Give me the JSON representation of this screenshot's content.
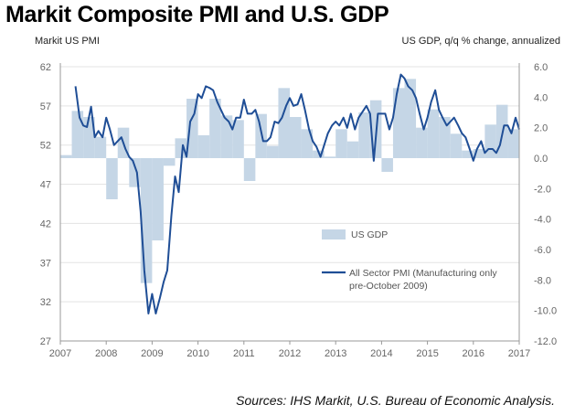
{
  "chart_data": {
    "type": "bar+line",
    "title": "Markit Composite PMI and U.S. GDP",
    "ylabel_left": "Markit US  PMI",
    "ylabel_right": "US GDP, q/q % change, annualized",
    "xlim": [
      2007.0,
      2017.0
    ],
    "ylim_left": [
      27,
      62
    ],
    "ylim_right": [
      -12.0,
      6.0
    ],
    "x_ticks": [
      "2007",
      "2008",
      "2009",
      "2010",
      "2011",
      "2012",
      "2013",
      "2014",
      "2015",
      "2016",
      "2017"
    ],
    "y_ticks_left": [
      "62",
      "57",
      "52",
      "47",
      "42",
      "37",
      "32",
      "27"
    ],
    "y_ticks_right": [
      "6.0",
      "4.0",
      "2.0",
      "0.0",
      "-2.0",
      "-4.0",
      "-6.0",
      "-8.0",
      "-10.0",
      "-12.0"
    ],
    "grid": true,
    "gdp_series": {
      "name": "US GDP",
      "color": "#c5d6e6",
      "quarters": [
        {
          "start": 2007.0,
          "value": 0.2
        },
        {
          "start": 2007.25,
          "value": 3.1
        },
        {
          "start": 2007.5,
          "value": 2.7
        },
        {
          "start": 2007.75,
          "value": 1.4
        },
        {
          "start": 2008.0,
          "value": -2.7
        },
        {
          "start": 2008.25,
          "value": 2.0
        },
        {
          "start": 2008.5,
          "value": -1.9
        },
        {
          "start": 2008.75,
          "value": -8.2
        },
        {
          "start": 2009.0,
          "value": -5.4
        },
        {
          "start": 2009.25,
          "value": -0.5
        },
        {
          "start": 2009.5,
          "value": 1.3
        },
        {
          "start": 2009.75,
          "value": 3.9
        },
        {
          "start": 2010.0,
          "value": 1.5
        },
        {
          "start": 2010.25,
          "value": 3.9
        },
        {
          "start": 2010.5,
          "value": 2.8
        },
        {
          "start": 2010.75,
          "value": 2.5
        },
        {
          "start": 2011.0,
          "value": -1.5
        },
        {
          "start": 2011.25,
          "value": 2.9
        },
        {
          "start": 2011.5,
          "value": 0.8
        },
        {
          "start": 2011.75,
          "value": 4.6
        },
        {
          "start": 2012.0,
          "value": 2.7
        },
        {
          "start": 2012.25,
          "value": 1.9
        },
        {
          "start": 2012.5,
          "value": 0.5
        },
        {
          "start": 2012.75,
          "value": 0.1
        },
        {
          "start": 2013.0,
          "value": 1.9
        },
        {
          "start": 2013.25,
          "value": 1.1
        },
        {
          "start": 2013.5,
          "value": 3.0
        },
        {
          "start": 2013.75,
          "value": 3.8
        },
        {
          "start": 2014.0,
          "value": -0.9
        },
        {
          "start": 2014.25,
          "value": 4.6
        },
        {
          "start": 2014.5,
          "value": 5.2
        },
        {
          "start": 2014.75,
          "value": 2.0
        },
        {
          "start": 2015.0,
          "value": 3.2
        },
        {
          "start": 2015.25,
          "value": 2.7
        },
        {
          "start": 2015.5,
          "value": 1.6
        },
        {
          "start": 2015.75,
          "value": 0.5
        },
        {
          "start": 2016.0,
          "value": 0.6
        },
        {
          "start": 2016.25,
          "value": 2.2
        },
        {
          "start": 2016.5,
          "value": 3.5
        },
        {
          "start": 2016.75,
          "value": 1.9
        }
      ]
    },
    "pmi_series": {
      "name": "All Sector PMI (Manufacturing only pre-October 2009)",
      "color": "#1f4e96",
      "points": [
        [
          2007.33,
          59.5
        ],
        [
          2007.42,
          55.5
        ],
        [
          2007.5,
          54.5
        ],
        [
          2007.58,
          54.3
        ],
        [
          2007.67,
          56.9
        ],
        [
          2007.75,
          53.0
        ],
        [
          2007.83,
          53.8
        ],
        [
          2007.92,
          53.0
        ],
        [
          2008.0,
          55.5
        ],
        [
          2008.08,
          54.0
        ],
        [
          2008.17,
          52.0
        ],
        [
          2008.25,
          52.5
        ],
        [
          2008.33,
          53.0
        ],
        [
          2008.42,
          51.5
        ],
        [
          2008.5,
          50.5
        ],
        [
          2008.58,
          50.0
        ],
        [
          2008.67,
          48.5
        ],
        [
          2008.75,
          43.5
        ],
        [
          2008.83,
          36.0
        ],
        [
          2008.92,
          30.5
        ],
        [
          2009.0,
          33.0
        ],
        [
          2009.08,
          30.5
        ],
        [
          2009.17,
          32.5
        ],
        [
          2009.25,
          34.5
        ],
        [
          2009.33,
          36.0
        ],
        [
          2009.42,
          43.0
        ],
        [
          2009.5,
          48.0
        ],
        [
          2009.58,
          46.0
        ],
        [
          2009.67,
          52.0
        ],
        [
          2009.75,
          50.5
        ],
        [
          2009.83,
          55.0
        ],
        [
          2009.92,
          56.0
        ],
        [
          2010.0,
          58.5
        ],
        [
          2010.08,
          58.0
        ],
        [
          2010.17,
          59.5
        ],
        [
          2010.25,
          59.3
        ],
        [
          2010.33,
          59.0
        ],
        [
          2010.42,
          57.5
        ],
        [
          2010.5,
          56.5
        ],
        [
          2010.58,
          55.5
        ],
        [
          2010.67,
          55.0
        ],
        [
          2010.75,
          54.0
        ],
        [
          2010.83,
          55.5
        ],
        [
          2010.92,
          55.5
        ],
        [
          2011.0,
          57.8
        ],
        [
          2011.08,
          56.0
        ],
        [
          2011.17,
          56.0
        ],
        [
          2011.25,
          56.5
        ],
        [
          2011.33,
          55.0
        ],
        [
          2011.42,
          52.5
        ],
        [
          2011.5,
          52.5
        ],
        [
          2011.58,
          53.0
        ],
        [
          2011.67,
          55.0
        ],
        [
          2011.75,
          54.8
        ],
        [
          2011.83,
          55.5
        ],
        [
          2011.92,
          57.0
        ],
        [
          2012.0,
          58.0
        ],
        [
          2012.08,
          57.0
        ],
        [
          2012.17,
          57.2
        ],
        [
          2012.25,
          58.5
        ],
        [
          2012.33,
          56.5
        ],
        [
          2012.42,
          54.0
        ],
        [
          2012.5,
          52.5
        ],
        [
          2012.58,
          51.8
        ],
        [
          2012.67,
          50.5
        ],
        [
          2012.75,
          52.0
        ],
        [
          2012.83,
          53.5
        ],
        [
          2012.92,
          54.5
        ],
        [
          2013.0,
          55.0
        ],
        [
          2013.08,
          54.5
        ],
        [
          2013.17,
          55.5
        ],
        [
          2013.25,
          54.2
        ],
        [
          2013.33,
          56.0
        ],
        [
          2013.42,
          54.0
        ],
        [
          2013.5,
          55.5
        ],
        [
          2013.58,
          56.2
        ],
        [
          2013.67,
          57.0
        ],
        [
          2013.75,
          56.0
        ],
        [
          2013.83,
          50.0
        ],
        [
          2013.92,
          56.0
        ],
        [
          2014.0,
          56.0
        ],
        [
          2014.08,
          56.0
        ],
        [
          2014.17,
          54.0
        ],
        [
          2014.25,
          55.5
        ],
        [
          2014.33,
          58.5
        ],
        [
          2014.42,
          61.0
        ],
        [
          2014.5,
          60.5
        ],
        [
          2014.58,
          59.5
        ],
        [
          2014.67,
          59.0
        ],
        [
          2014.75,
          58.0
        ],
        [
          2014.83,
          56.0
        ],
        [
          2014.92,
          54.0
        ],
        [
          2015.0,
          55.5
        ],
        [
          2015.08,
          57.5
        ],
        [
          2015.17,
          59.0
        ],
        [
          2015.25,
          56.5
        ],
        [
          2015.33,
          55.5
        ],
        [
          2015.42,
          54.5
        ],
        [
          2015.5,
          55.0
        ],
        [
          2015.58,
          55.5
        ],
        [
          2015.67,
          54.5
        ],
        [
          2015.75,
          53.5
        ],
        [
          2015.83,
          53.0
        ],
        [
          2015.92,
          51.5
        ],
        [
          2016.0,
          50.0
        ],
        [
          2016.08,
          51.5
        ],
        [
          2016.17,
          52.5
        ],
        [
          2016.25,
          51.0
        ],
        [
          2016.33,
          51.5
        ],
        [
          2016.42,
          51.5
        ],
        [
          2016.5,
          51.0
        ],
        [
          2016.58,
          52.0
        ],
        [
          2016.67,
          54.5
        ],
        [
          2016.75,
          54.5
        ],
        [
          2016.83,
          53.5
        ],
        [
          2016.92,
          55.5
        ],
        [
          2017.0,
          54.0
        ]
      ]
    },
    "legend": {
      "placement": "center-right",
      "gdp_label": "US GDP",
      "pmi_label_line1": "All Sector PMI (Manufacturing only",
      "pmi_label_line2": "pre-October 2009)"
    }
  },
  "source": "Sources: IHS Markit, U.S. Bureau of Economic Analysis."
}
